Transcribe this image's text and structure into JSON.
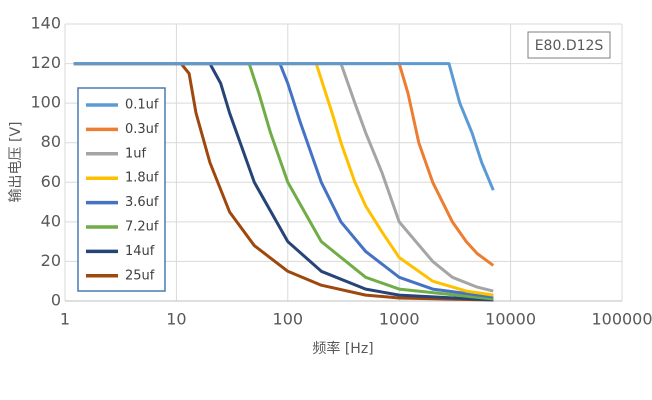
{
  "chart_data": {
    "type": "line",
    "annotation": "E80.D12S",
    "xlabel": "频率 [Hz]",
    "ylabel": "输出电压 [V]",
    "xscale": "log",
    "grid": true,
    "legend": "left",
    "xlim": [
      1,
      100000
    ],
    "xticks": [
      1,
      10,
      100,
      1000,
      10000,
      100000
    ],
    "ylim": [
      0,
      140
    ],
    "yticks": [
      0,
      20,
      40,
      60,
      80,
      100,
      120,
      140
    ],
    "series": [
      {
        "name": "0.1uf",
        "color": "#5b9bd5",
        "x": [
          1.2,
          2800,
          3500,
          4500,
          5500,
          7000
        ],
        "values": [
          120,
          120,
          100,
          85,
          70,
          56
        ]
      },
      {
        "name": "0.3uf",
        "color": "#ed7d31",
        "x": [
          1.2,
          1000,
          1200,
          1500,
          2000,
          3000,
          4000,
          5000,
          7000
        ],
        "values": [
          120,
          120,
          105,
          80,
          60,
          40,
          30,
          24,
          18
        ]
      },
      {
        "name": "1uf",
        "color": "#a5a5a5",
        "x": [
          1.2,
          300,
          400,
          500,
          700,
          1000,
          2000,
          3000,
          5000,
          7000
        ],
        "values": [
          120,
          120,
          100,
          85,
          65,
          40,
          20,
          12,
          7,
          5
        ]
      },
      {
        "name": "1.8uf",
        "color": "#ffc000",
        "x": [
          1.2,
          180,
          250,
          300,
          400,
          500,
          700,
          1000,
          2000,
          4000,
          7000
        ],
        "values": [
          120,
          120,
          95,
          80,
          60,
          48,
          35,
          22,
          10,
          5,
          3
        ]
      },
      {
        "name": "3.6uf",
        "color": "#4472c4",
        "x": [
          1.2,
          85,
          100,
          130,
          200,
          300,
          500,
          1000,
          2000,
          7000
        ],
        "values": [
          120,
          120,
          110,
          90,
          60,
          40,
          25,
          12,
          6,
          2
        ]
      },
      {
        "name": "7.2uf",
        "color": "#70ad47",
        "x": [
          1.2,
          45,
          55,
          70,
          100,
          200,
          500,
          1000,
          7000
        ],
        "values": [
          120,
          120,
          105,
          85,
          60,
          30,
          12,
          6,
          1
        ]
      },
      {
        "name": "14uf",
        "color": "#264478",
        "x": [
          1.2,
          20,
          25,
          30,
          50,
          100,
          200,
          500,
          1000,
          7000
        ],
        "values": [
          120,
          120,
          110,
          95,
          60,
          30,
          15,
          6,
          3,
          0.5
        ]
      },
      {
        "name": "25uf",
        "color": "#9e480e",
        "x": [
          1.2,
          11,
          13,
          15,
          20,
          30,
          50,
          100,
          200,
          500,
          1000,
          7000
        ],
        "values": [
          120,
          120,
          115,
          95,
          70,
          45,
          28,
          15,
          8,
          3,
          1.5,
          0.5
        ]
      }
    ]
  }
}
